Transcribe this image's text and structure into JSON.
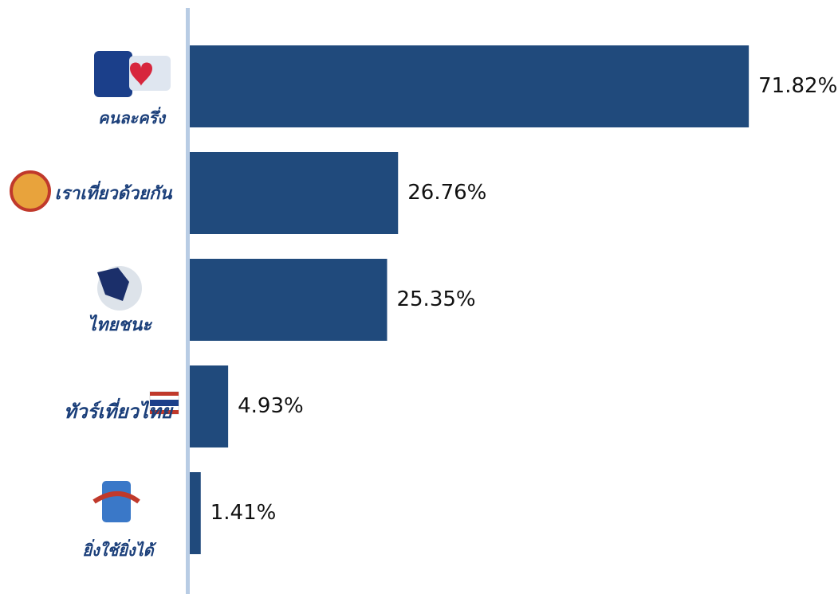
{
  "chart_data": {
    "type": "bar",
    "orientation": "horizontal",
    "categories": [
      "คนละครึ่ง",
      "เราเที่ยวด้วยกัน",
      "ไทยชนะ",
      "ทัวร์เที่ยวไทย",
      "ยิ่งใช้ยิ่งได้"
    ],
    "values": [
      71.82,
      26.76,
      25.35,
      4.93,
      1.41
    ],
    "value_labels": [
      "71.82%",
      "26.76%",
      "25.35%",
      "4.93%",
      "1.41%"
    ],
    "color": "#204a7c",
    "xlim": [
      0,
      80
    ]
  }
}
